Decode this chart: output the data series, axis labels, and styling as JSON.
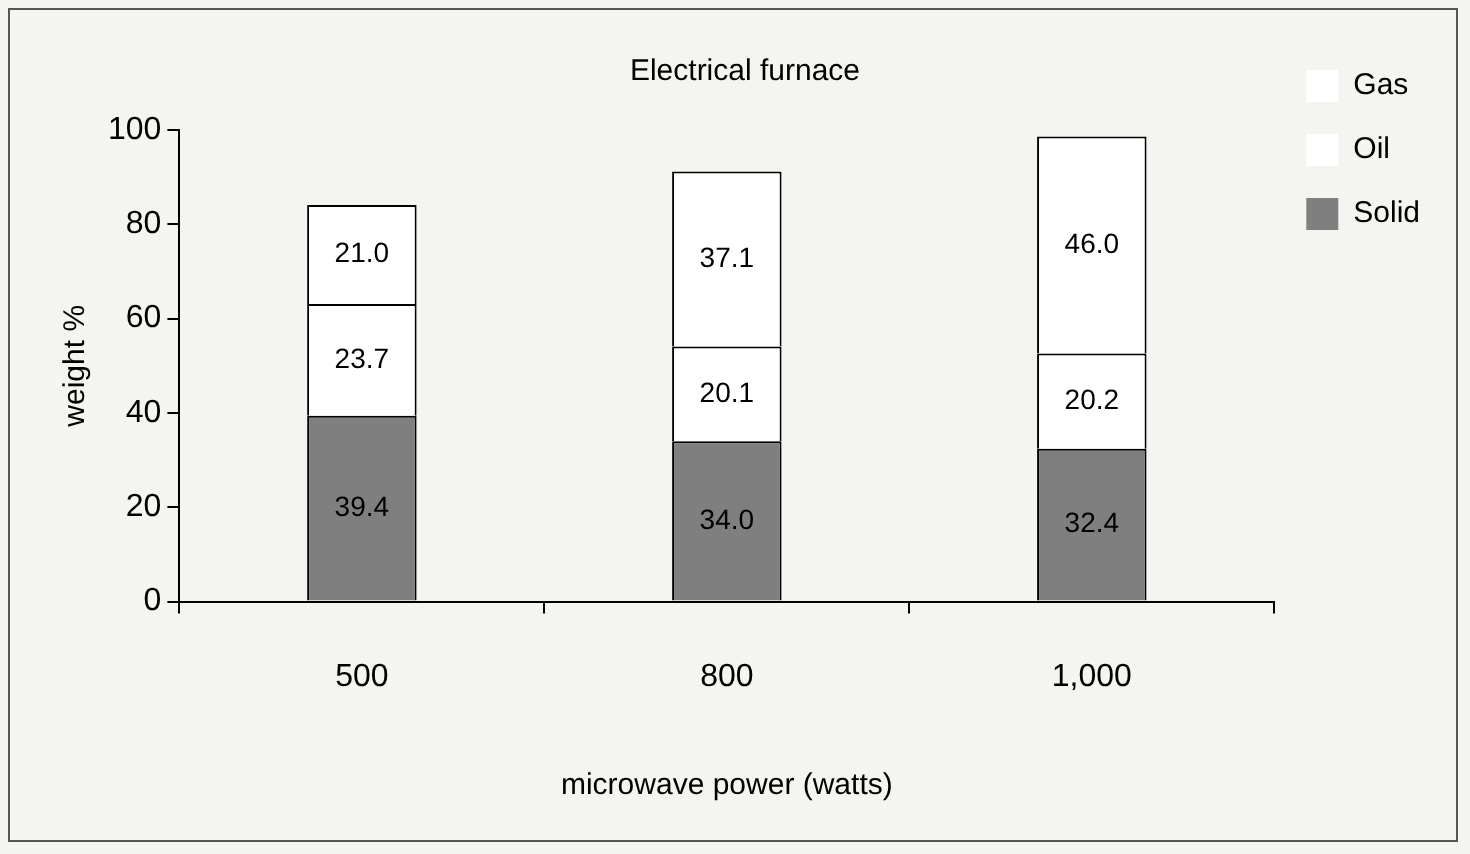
{
  "chart_data": {
    "type": "bar",
    "title": "Electrical furnace",
    "xlabel": "microwave power (watts)",
    "ylabel": "weight %",
    "categories": [
      "500",
      "800",
      "1,000"
    ],
    "stacked": true,
    "ylim": [
      0,
      100
    ],
    "yticks": [
      0,
      20,
      40,
      60,
      80,
      100
    ],
    "grid": false,
    "legend": "top right",
    "series": [
      {
        "name": "Solid",
        "color": "#7f7f7f",
        "values": [
          39.4,
          34.0,
          32.4
        ],
        "value_labels": [
          "39.4",
          "34.0",
          "32.4"
        ]
      },
      {
        "name": "Oil",
        "color": "#ffffff",
        "values": [
          23.7,
          20.1,
          20.2
        ],
        "value_labels": [
          "23.7",
          "20.1",
          "20.2"
        ]
      },
      {
        "name": "Gas",
        "color": "#ffffff",
        "values": [
          21.0,
          37.1,
          46.0
        ],
        "value_labels": [
          "21.0",
          "37.1",
          "46.0"
        ]
      }
    ]
  }
}
